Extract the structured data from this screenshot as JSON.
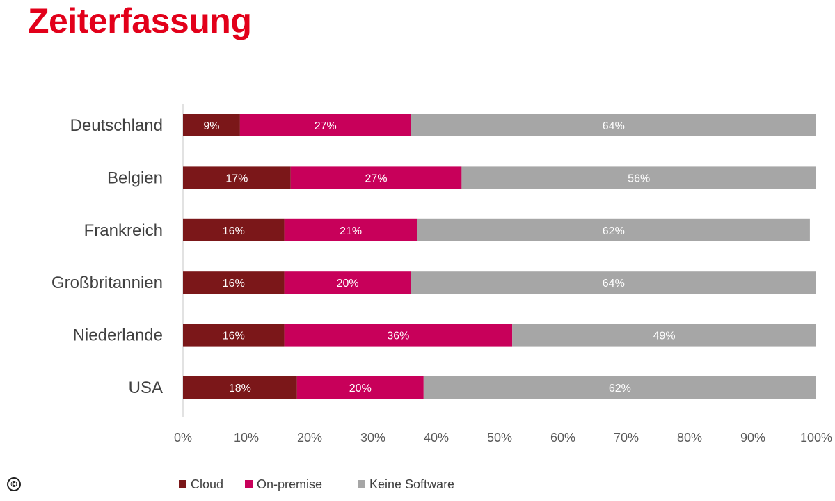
{
  "title": "Zeiterfassung",
  "colors": {
    "title": "#e2001a",
    "cloud": "#7b1719",
    "on_premise": "#c8005a",
    "keine_software": "#a6a6a6",
    "axis": "#d9d9d9"
  },
  "copyright_icon": "copyright-icon",
  "chart_data": {
    "type": "bar",
    "orientation": "horizontal",
    "stacked": true,
    "title": "Zeiterfassung",
    "categories": [
      "Deutschland",
      "Belgien",
      "Frankreich",
      "Großbritannien",
      "Niederlande",
      "USA"
    ],
    "series": [
      {
        "name": "Cloud",
        "values": [
          9,
          17,
          16,
          16,
          16,
          18
        ],
        "labels": [
          "9%",
          "17%",
          "16%",
          "16%",
          "16%",
          "18%"
        ]
      },
      {
        "name": "On-premise",
        "values": [
          27,
          27,
          21,
          20,
          36,
          20
        ],
        "labels": [
          "27%",
          "27%",
          "21%",
          "20%",
          "36%",
          "20%"
        ]
      },
      {
        "name": "Keine Software",
        "values": [
          64,
          56,
          62,
          64,
          49,
          62
        ],
        "labels": [
          "64%",
          "56%",
          "62%",
          "64%",
          "49%",
          "62%"
        ]
      }
    ],
    "xlim": [
      0,
      100
    ],
    "xticks": [
      "0%",
      "10%",
      "20%",
      "30%",
      "40%",
      "50%",
      "60%",
      "70%",
      "80%",
      "90%",
      "100%"
    ],
    "grid": false,
    "legend": {
      "position": "bottom",
      "entries": [
        "Cloud",
        "On-premise",
        "Keine Software"
      ]
    }
  }
}
